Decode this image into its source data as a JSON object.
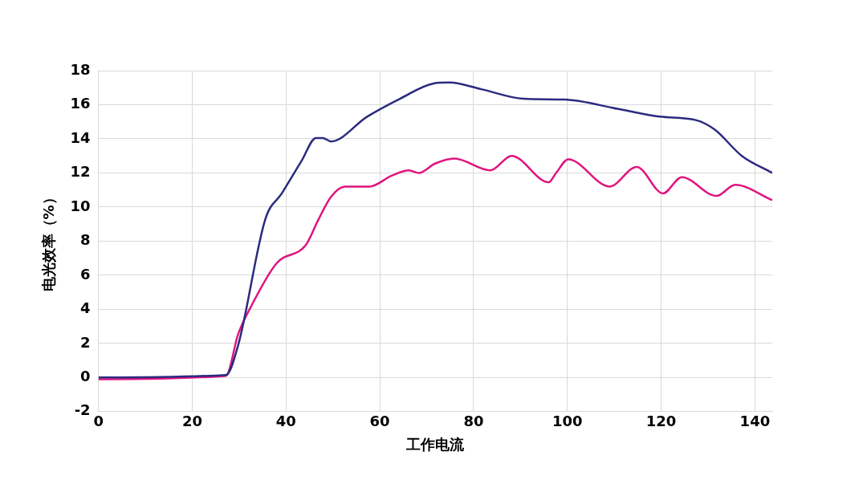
{
  "chart_data": {
    "type": "line",
    "xlabel": "工作电流",
    "ylabel": "电光效率（%）",
    "xlim": [
      0,
      143.7
    ],
    "xticks": [
      0,
      20,
      40,
      60,
      80,
      100,
      120,
      140
    ],
    "ylim": [
      -2,
      18
    ],
    "yticks": [
      -2,
      0,
      2,
      4,
      6,
      8,
      10,
      12,
      14,
      16,
      18
    ],
    "grid": true,
    "legend": false,
    "marker": "none",
    "line_style": "solid",
    "series": [
      {
        "color": "#2b2b80",
        "x": [
          0,
          27.2,
          29.8,
          35.6,
          39.1,
          43.3,
          46.4,
          47.8,
          49.6,
          57.3,
          64.3,
          71.5,
          74.8,
          81.8,
          90.6,
          99.4,
          110.9,
          119.7,
          127.4,
          131.4,
          137.2,
          143.7
        ],
        "values": [
          0,
          0.15,
          1.9,
          9.3,
          10.8,
          12.7,
          14.05,
          14.05,
          13.85,
          15.3,
          16.35,
          17.25,
          17.3,
          16.9,
          16.35,
          16.3,
          15.75,
          15.3,
          15.1,
          14.55,
          13.0,
          12.0
        ]
      },
      {
        "color": "#e0147f",
        "x": [
          0,
          27.2,
          29.8,
          32.8,
          38,
          44.3,
          46.8,
          49.6,
          52.6,
          57.8,
          62.6,
          66.2,
          68.3,
          71.8,
          75.9,
          83.6,
          88.1,
          96,
          97.6,
          100.2,
          109,
          114.8,
          120.4,
          124.4,
          131.8,
          135.8,
          143.7
        ],
        "values": [
          -0.1,
          0.1,
          2.55,
          4.3,
          6.7,
          7.8,
          9.2,
          10.6,
          11.2,
          11.2,
          11.85,
          12.15,
          12.0,
          12.55,
          12.85,
          12.15,
          13.0,
          11.45,
          12.0,
          12.8,
          11.2,
          12.35,
          10.8,
          11.75,
          10.65,
          11.3,
          10.4
        ]
      }
    ]
  }
}
